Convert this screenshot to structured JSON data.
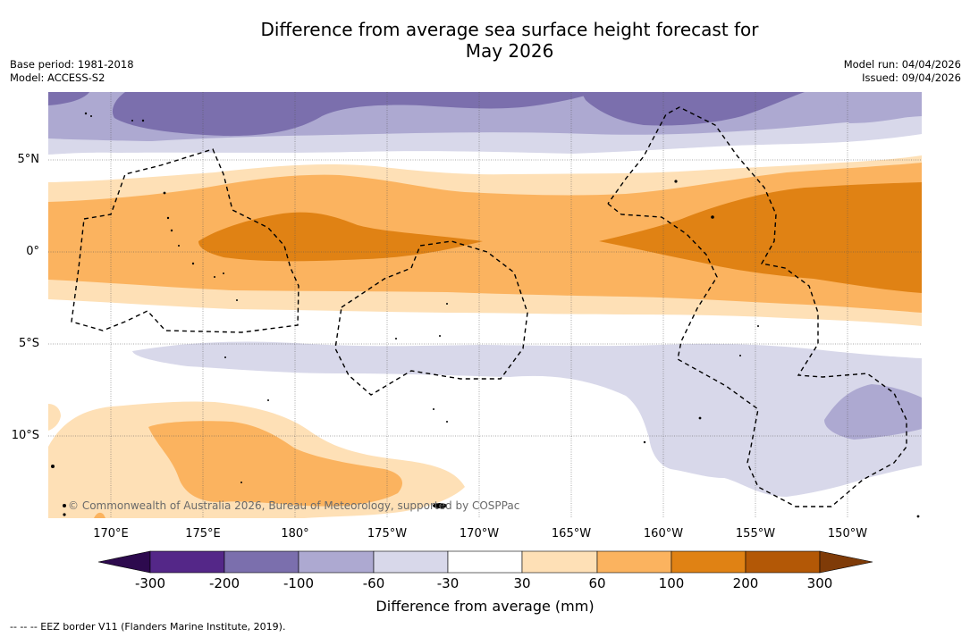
{
  "title_line1": "Difference from average sea surface height forecast for",
  "title_line2": "May 2026",
  "base_period": "Base period: 1981-2018",
  "model": "Model: ACCESS-S2",
  "model_run": "Model run: 04/04/2026",
  "issued": "Issued: 09/04/2026",
  "credit": "© Commonwealth of Australia 2026, Bureau of Meteorology, supported by COSPPac",
  "lat_labels": [
    "5°N",
    "0°",
    "5°S",
    "10°S"
  ],
  "lon_labels": [
    "170°E",
    "175°E",
    "180°",
    "175°W",
    "170°W",
    "165°W",
    "160°W",
    "155°W",
    "150°W"
  ],
  "colorbar": {
    "title": "Difference from average (mm)",
    "ticks": [
      "-300",
      "-200",
      "-100",
      "-60",
      "-30",
      "30",
      "60",
      "100",
      "200",
      "300"
    ],
    "colors": {
      "under": "#2d0a4e",
      "neg300_200": "#542788",
      "neg200_100": "#7b6fad",
      "neg100_60": "#ada9d1",
      "neg60_30": "#d8d8ea",
      "neutral": "#ffffff",
      "pos30_60": "#fee0b6",
      "pos60_100": "#fbb35f",
      "pos100_200": "#e08214",
      "pos200_300": "#b35806",
      "over": "#7f3b08"
    }
  },
  "legend_note": "-- -- -- EEZ border V11 (Flanders Marine Institute, 2019)."
}
